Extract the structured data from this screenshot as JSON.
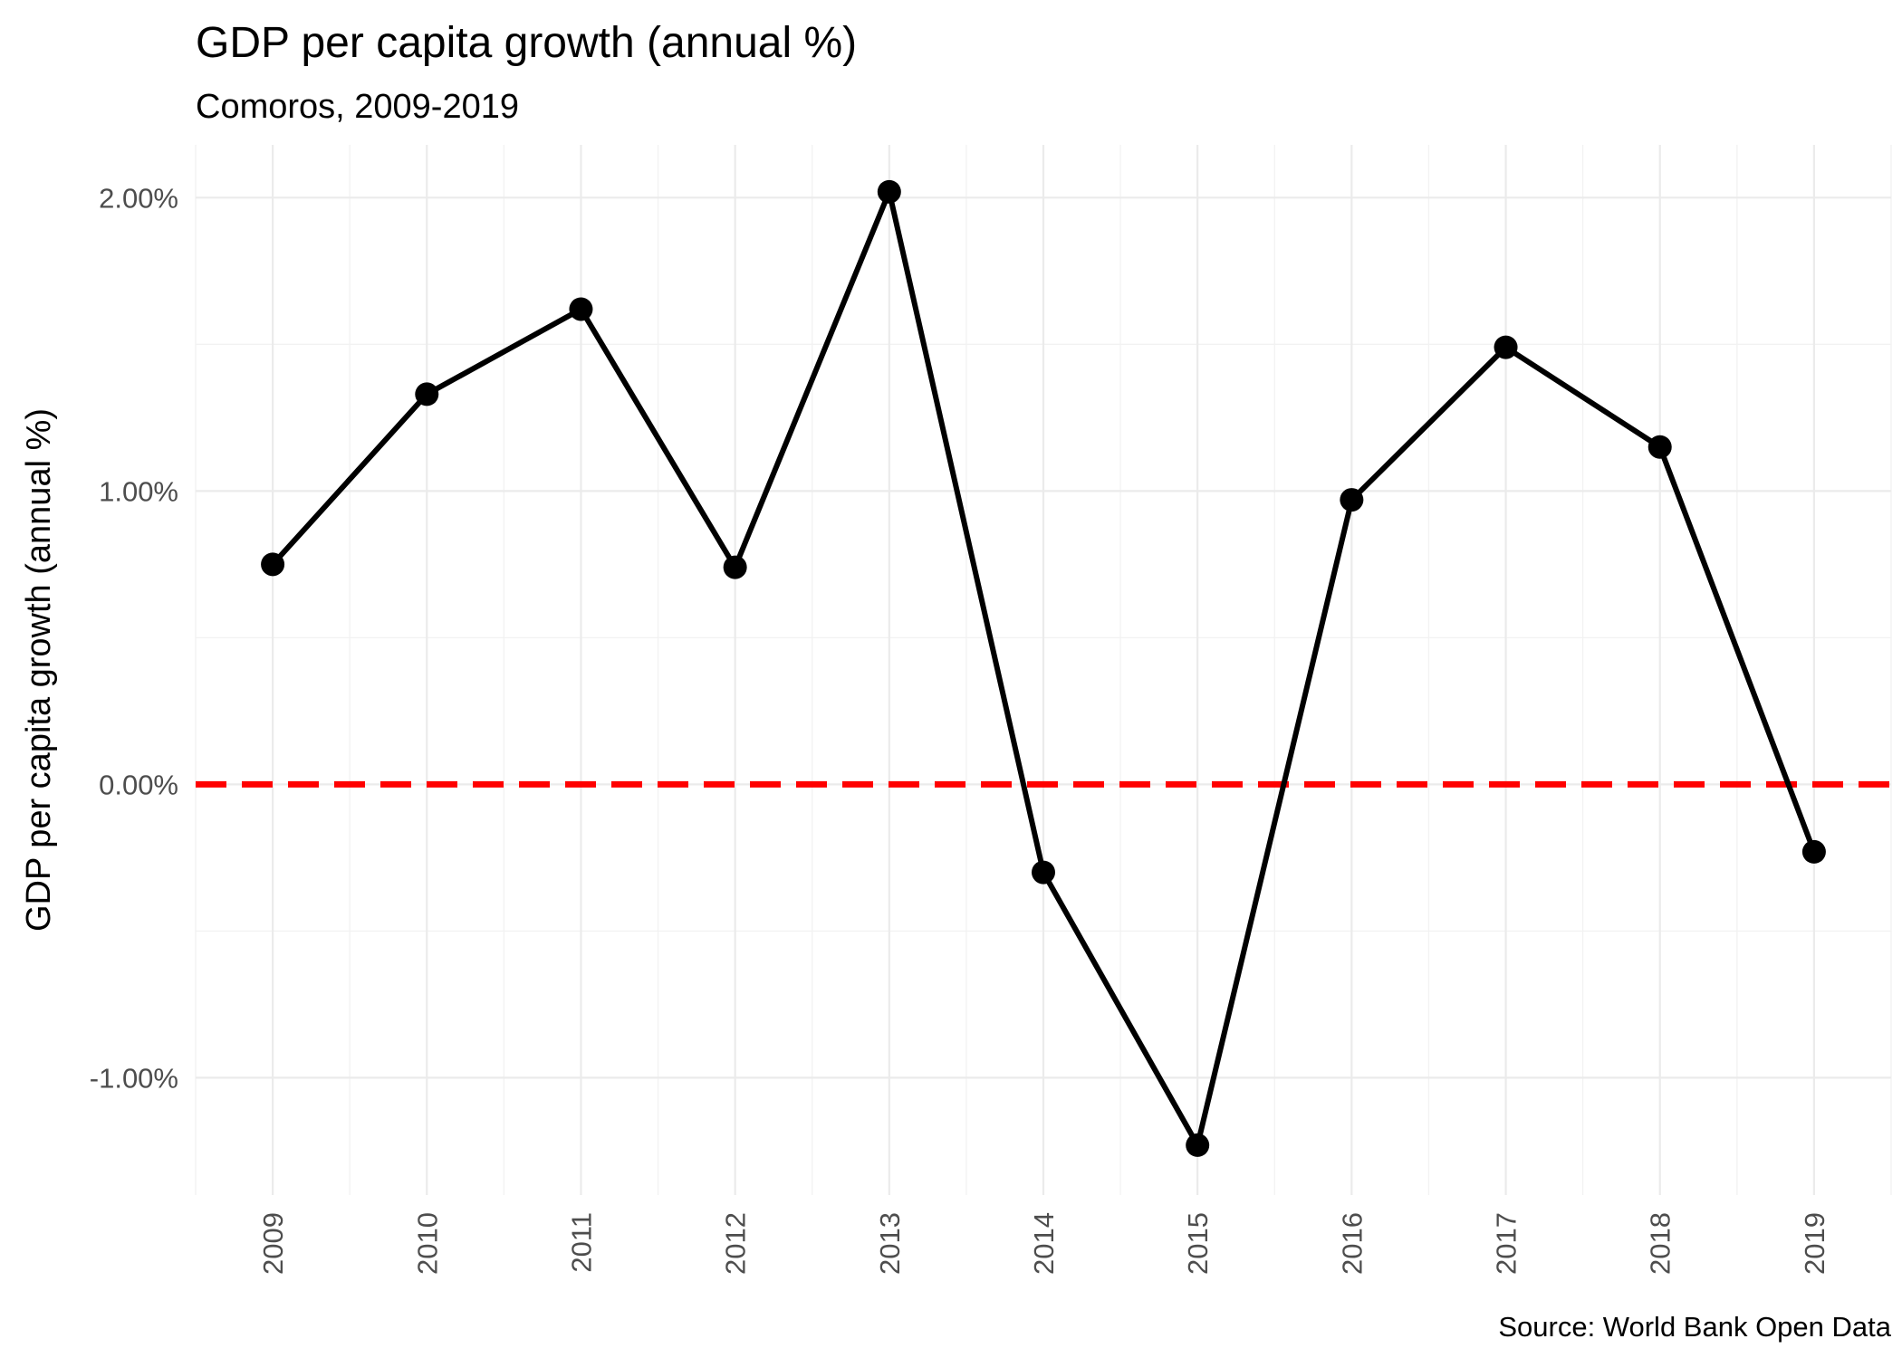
{
  "chart_data": {
    "type": "line",
    "title": "GDP per capita growth (annual %)",
    "subtitle": "Comoros, 2009-2019",
    "xlabel": "",
    "ylabel": "GDP per capita growth (annual %)",
    "caption": "Source: World Bank Open Data",
    "x": [
      2009,
      2010,
      2011,
      2012,
      2013,
      2014,
      2015,
      2016,
      2017,
      2018,
      2019
    ],
    "x_tick_labels": [
      "2009",
      "2010",
      "2011",
      "2012",
      "2013",
      "2014",
      "2015",
      "2016",
      "2017",
      "2018",
      "2019"
    ],
    "series": [
      {
        "values": [
          0.75,
          1.33,
          1.62,
          0.74,
          2.02,
          -0.3,
          -1.23,
          0.97,
          1.49,
          1.15,
          -0.23
        ],
        "color": "#000000",
        "markers": true
      }
    ],
    "y_ticks": [
      -1,
      0,
      1,
      2
    ],
    "y_tick_labels": [
      "-1.00%",
      "0.00%",
      "1.00%",
      "2.00%"
    ],
    "ylim": [
      -1.4,
      2.18
    ],
    "xlim": [
      2008.5,
      2019.5
    ],
    "reference_line": {
      "y": 0,
      "color": "#ff0000",
      "style": "dashed"
    },
    "grid": true,
    "legend": "none"
  }
}
